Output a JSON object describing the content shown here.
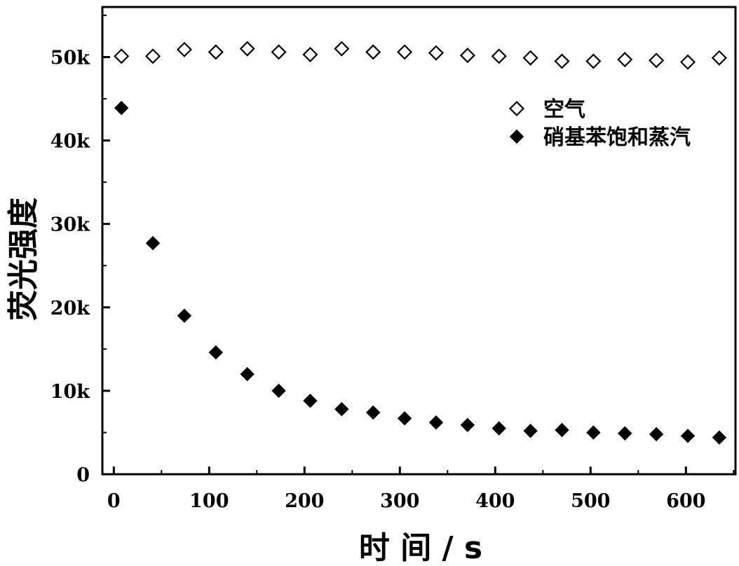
{
  "chart_data": {
    "type": "scatter",
    "title": "",
    "xlabel": "时 间 / s",
    "ylabel": "荧光强度",
    "xlim": [
      -12,
      652
    ],
    "ylim": [
      0,
      56000
    ],
    "x_ticks": [
      0,
      100,
      200,
      300,
      400,
      500,
      600
    ],
    "x_tick_labels": [
      "0",
      "100",
      "200",
      "300",
      "400",
      "500",
      "600"
    ],
    "y_ticks": [
      0,
      10000,
      20000,
      30000,
      40000,
      50000
    ],
    "y_tick_labels": [
      "0",
      "10k",
      "20k",
      "30k",
      "40k",
      "50k"
    ],
    "grid": false,
    "legend_position": "top-right",
    "series": [
      {
        "name": "空气",
        "marker": "diamond-open",
        "color": "#000000",
        "x": [
          8,
          41,
          74,
          107,
          140,
          173,
          206,
          239,
          272,
          305,
          338,
          371,
          404,
          437,
          470,
          503,
          536,
          569,
          602,
          635
        ],
        "y": [
          50100,
          50100,
          50900,
          50600,
          51000,
          50600,
          50300,
          51000,
          50600,
          50600,
          50500,
          50200,
          50100,
          49900,
          49500,
          49500,
          49700,
          49600,
          49400,
          49900
        ]
      },
      {
        "name": "硝基苯饱和蒸汽",
        "marker": "diamond-filled",
        "color": "#000000",
        "x": [
          8,
          41,
          74,
          107,
          140,
          173,
          206,
          239,
          272,
          305,
          338,
          371,
          404,
          437,
          470,
          503,
          536,
          569,
          602,
          635
        ],
        "y": [
          43900,
          27700,
          19000,
          14600,
          12000,
          10000,
          8800,
          7800,
          7400,
          6700,
          6200,
          5900,
          5500,
          5200,
          5300,
          5000,
          4900,
          4800,
          4600,
          4400
        ]
      }
    ]
  }
}
